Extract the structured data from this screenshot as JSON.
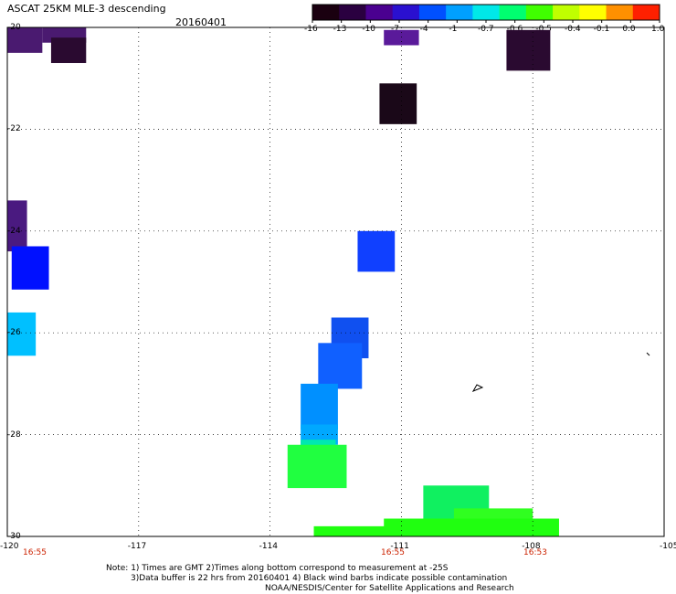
{
  "header": {
    "title": "ASCAT 25KM MLE-3 descending",
    "date": "20160401"
  },
  "colorbar": {
    "labels": [
      "-16",
      "-13",
      "-10",
      "-7",
      "-4",
      "-1",
      "-0.7",
      "-0.6",
      "-0.5",
      "-0.4",
      "-0.1",
      "0.0",
      "1.0"
    ],
    "colors": [
      "#1a0010",
      "#2a0040",
      "#4a0090",
      "#2a10d0",
      "#0050ff",
      "#00a0ff",
      "#00e8e8",
      "#00ff70",
      "#40ff00",
      "#c0ff00",
      "#ffff00",
      "#ff9000",
      "#ff2000"
    ]
  },
  "map": {
    "lon_range": [
      -120,
      -105
    ],
    "lat_range": [
      -30,
      -20
    ],
    "x_ticks": [
      "-120",
      "-117",
      "-114",
      "-111",
      "-108",
      "-105"
    ],
    "y_ticks": [
      "-20",
      "-22",
      "-24",
      "-26",
      "-28",
      "-30"
    ],
    "time_labels": [
      "16:55",
      "16:55",
      "16:53"
    ],
    "cells": [
      {
        "lon": -120.0,
        "lat": -20.0,
        "w": 0.8,
        "h": 0.5,
        "color": "#4a1a70"
      },
      {
        "lon": -119.2,
        "lat": -20.0,
        "w": 1.0,
        "h": 0.3,
        "color": "#4a1a70"
      },
      {
        "lon": -119.0,
        "lat": -20.2,
        "w": 0.8,
        "h": 0.5,
        "color": "#2a0a30"
      },
      {
        "lon": -111.4,
        "lat": -20.05,
        "w": 0.8,
        "h": 0.3,
        "color": "#5a1a9a"
      },
      {
        "lon": -108.6,
        "lat": -20.05,
        "w": 1.0,
        "h": 0.8,
        "color": "#2a0a30"
      },
      {
        "lon": -111.5,
        "lat": -21.1,
        "w": 0.85,
        "h": 0.8,
        "color": "#1a0818"
      },
      {
        "lon": -120.0,
        "lat": -23.4,
        "w": 0.45,
        "h": 1.0,
        "color": "#4a1a80"
      },
      {
        "lon": -119.9,
        "lat": -24.3,
        "w": 0.85,
        "h": 0.85,
        "color": "#0010ff"
      },
      {
        "lon": -112.0,
        "lat": -24.0,
        "w": 0.85,
        "h": 0.8,
        "color": "#1040ff"
      },
      {
        "lon": -120.0,
        "lat": -25.6,
        "w": 0.65,
        "h": 0.85,
        "color": "#00c0ff"
      },
      {
        "lon": -112.6,
        "lat": -25.7,
        "w": 0.85,
        "h": 0.8,
        "color": "#1050f0"
      },
      {
        "lon": -112.9,
        "lat": -26.2,
        "w": 1.0,
        "h": 0.9,
        "color": "#1060ff"
      },
      {
        "lon": -113.3,
        "lat": -27.0,
        "w": 0.85,
        "h": 0.9,
        "color": "#0090ff"
      },
      {
        "lon": -113.3,
        "lat": -27.8,
        "w": 0.85,
        "h": 0.4,
        "color": "#00a8ff"
      },
      {
        "lon": -113.3,
        "lat": -28.1,
        "w": 0.8,
        "h": 0.5,
        "color": "#00e8b0"
      },
      {
        "lon": -113.6,
        "lat": -28.2,
        "w": 1.35,
        "h": 0.85,
        "color": "#20ff40"
      },
      {
        "lon": -110.5,
        "lat": -29.0,
        "w": 1.5,
        "h": 0.7,
        "color": "#10f060"
      },
      {
        "lon": -109.8,
        "lat": -29.45,
        "w": 1.8,
        "h": 0.55,
        "color": "#30ff20"
      },
      {
        "lon": -113.0,
        "lat": -29.8,
        "w": 3.5,
        "h": 0.2,
        "color": "#20ff10"
      },
      {
        "lon": -111.4,
        "lat": -29.65,
        "w": 4.0,
        "h": 0.35,
        "color": "#20ff10"
      }
    ]
  },
  "footer": {
    "line1": "Note: 1) Times are GMT 2)Times along bottom correspond to measurement at -25S",
    "line2": "3)Data buffer is 22 hrs from 20160401 4) Black wind barbs indicate possible contamination",
    "line3": "NOAA/NESDIS/Center for Satellite Applications and Research"
  }
}
